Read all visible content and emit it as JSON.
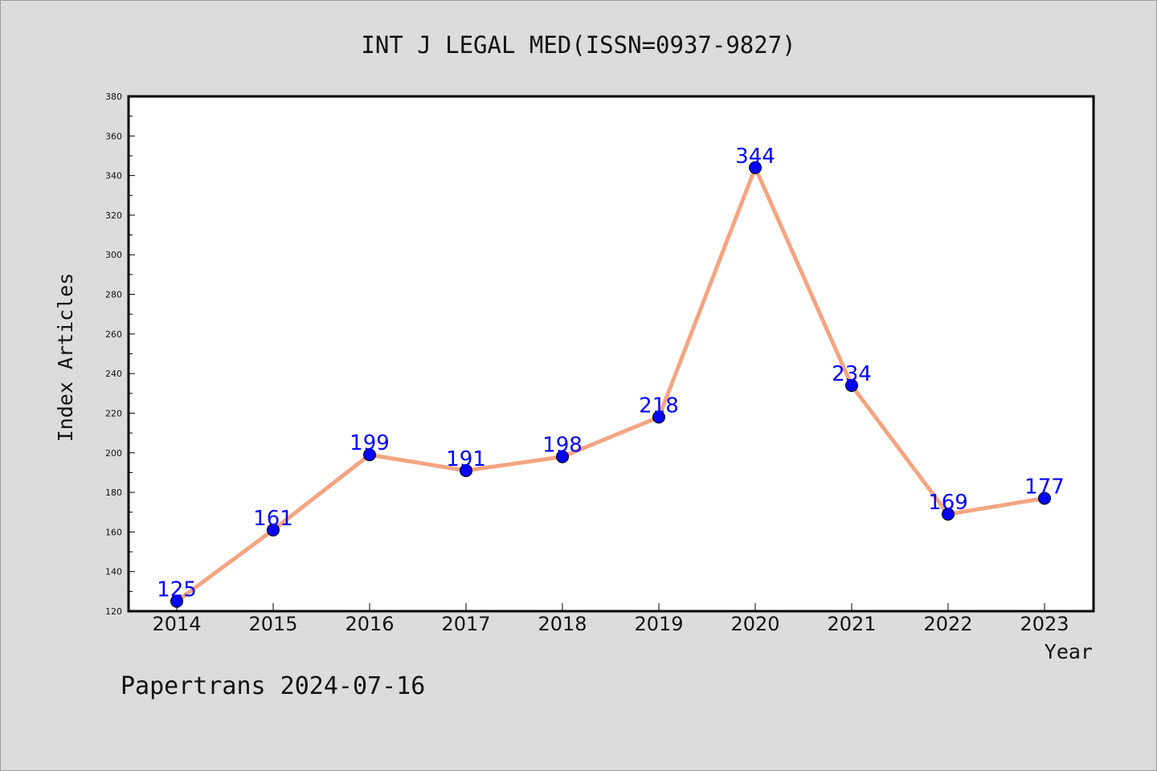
{
  "chart_data": {
    "type": "line",
    "title": "INT J LEGAL MED(ISSN=0937-9827)",
    "xlabel": "Year",
    "ylabel": "Index Articles",
    "categories": [
      "2014",
      "2015",
      "2016",
      "2017",
      "2018",
      "2019",
      "2020",
      "2021",
      "2022",
      "2023"
    ],
    "series": [
      {
        "values": [
          125,
          161,
          199,
          191,
          198,
          218,
          344,
          234,
          169,
          177
        ]
      }
    ],
    "yticks": [
      "120",
      "140",
      "160",
      "180",
      "200",
      "220",
      "240",
      "260",
      "280",
      "300",
      "320",
      "340",
      "360",
      "380"
    ],
    "ylim": [
      120,
      380
    ],
    "grid": false,
    "legend": "none",
    "colors": {
      "line": "#f4a582",
      "marker": "#0000ff",
      "data_label": "#0000ff",
      "background": "#dcdcdc",
      "plot_background": "#ffffff"
    }
  },
  "footer": "Papertrans 2024-07-16"
}
